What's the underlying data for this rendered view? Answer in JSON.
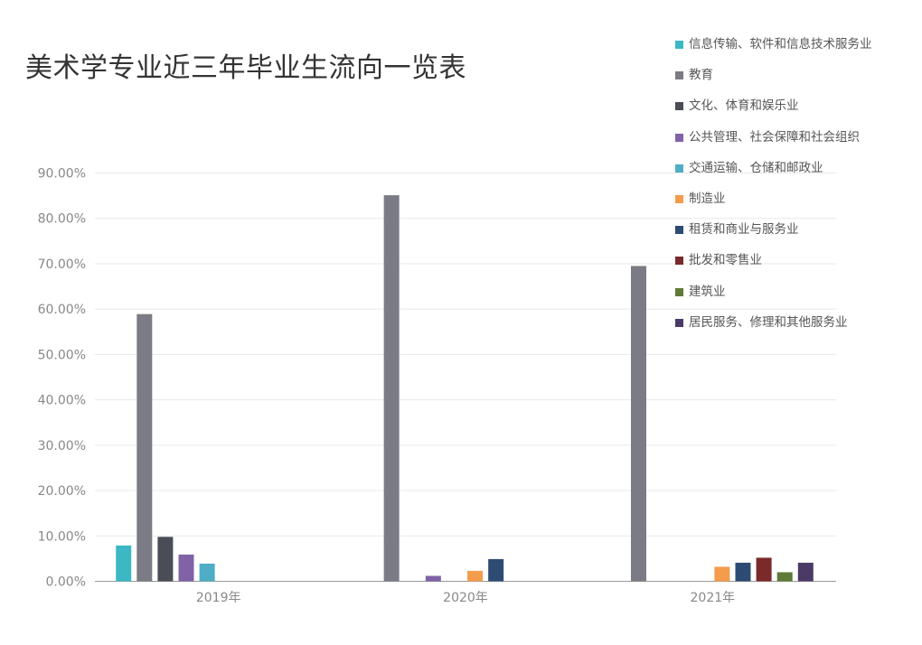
{
  "chart_data": {
    "type": "bar",
    "title": "美术学专业近三年毕业生流向一览表",
    "categories": [
      "2019年",
      "2020年",
      "2021年"
    ],
    "y_tick_labels": [
      "0.00%",
      "10.00%",
      "20.00%",
      "30.00%",
      "40.00%",
      "50.00%",
      "60.00%",
      "70.00%",
      "80.00%",
      "90.00%"
    ],
    "ylim": [
      0,
      90
    ],
    "grid": true,
    "legend_position": "top-right",
    "series": [
      {
        "name": "信息传输、软件和信息技术服务业",
        "color": "#3BB8C3",
        "values": [
          7.9,
          0,
          0
        ]
      },
      {
        "name": "教育",
        "color": "#7B7B85",
        "values": [
          58.9,
          85.1,
          69.5
        ]
      },
      {
        "name": "文化、体育和娱乐业",
        "color": "#4A4D55",
        "values": [
          9.8,
          0,
          0
        ]
      },
      {
        "name": "公共管理、社会保障和社会组织",
        "color": "#8062A6",
        "values": [
          5.9,
          1.2,
          0
        ]
      },
      {
        "name": "交通运输、仓储和邮政业",
        "color": "#4FADC5",
        "values": [
          3.9,
          0,
          0
        ]
      },
      {
        "name": "制造业",
        "color": "#F39C4C",
        "values": [
          0,
          2.3,
          3.2
        ]
      },
      {
        "name": "租赁和商业与服务业",
        "color": "#2D4B73",
        "values": [
          0,
          4.9,
          4.1
        ]
      },
      {
        "name": "批发和零售业",
        "color": "#7A2A2A",
        "values": [
          0,
          0,
          5.2
        ]
      },
      {
        "name": "建筑业",
        "color": "#5E7A37",
        "values": [
          0,
          0,
          2.0
        ]
      },
      {
        "name": "居民服务、修理和其他服务业",
        "color": "#4B3A66",
        "values": [
          0,
          0,
          4.1
        ]
      }
    ]
  }
}
